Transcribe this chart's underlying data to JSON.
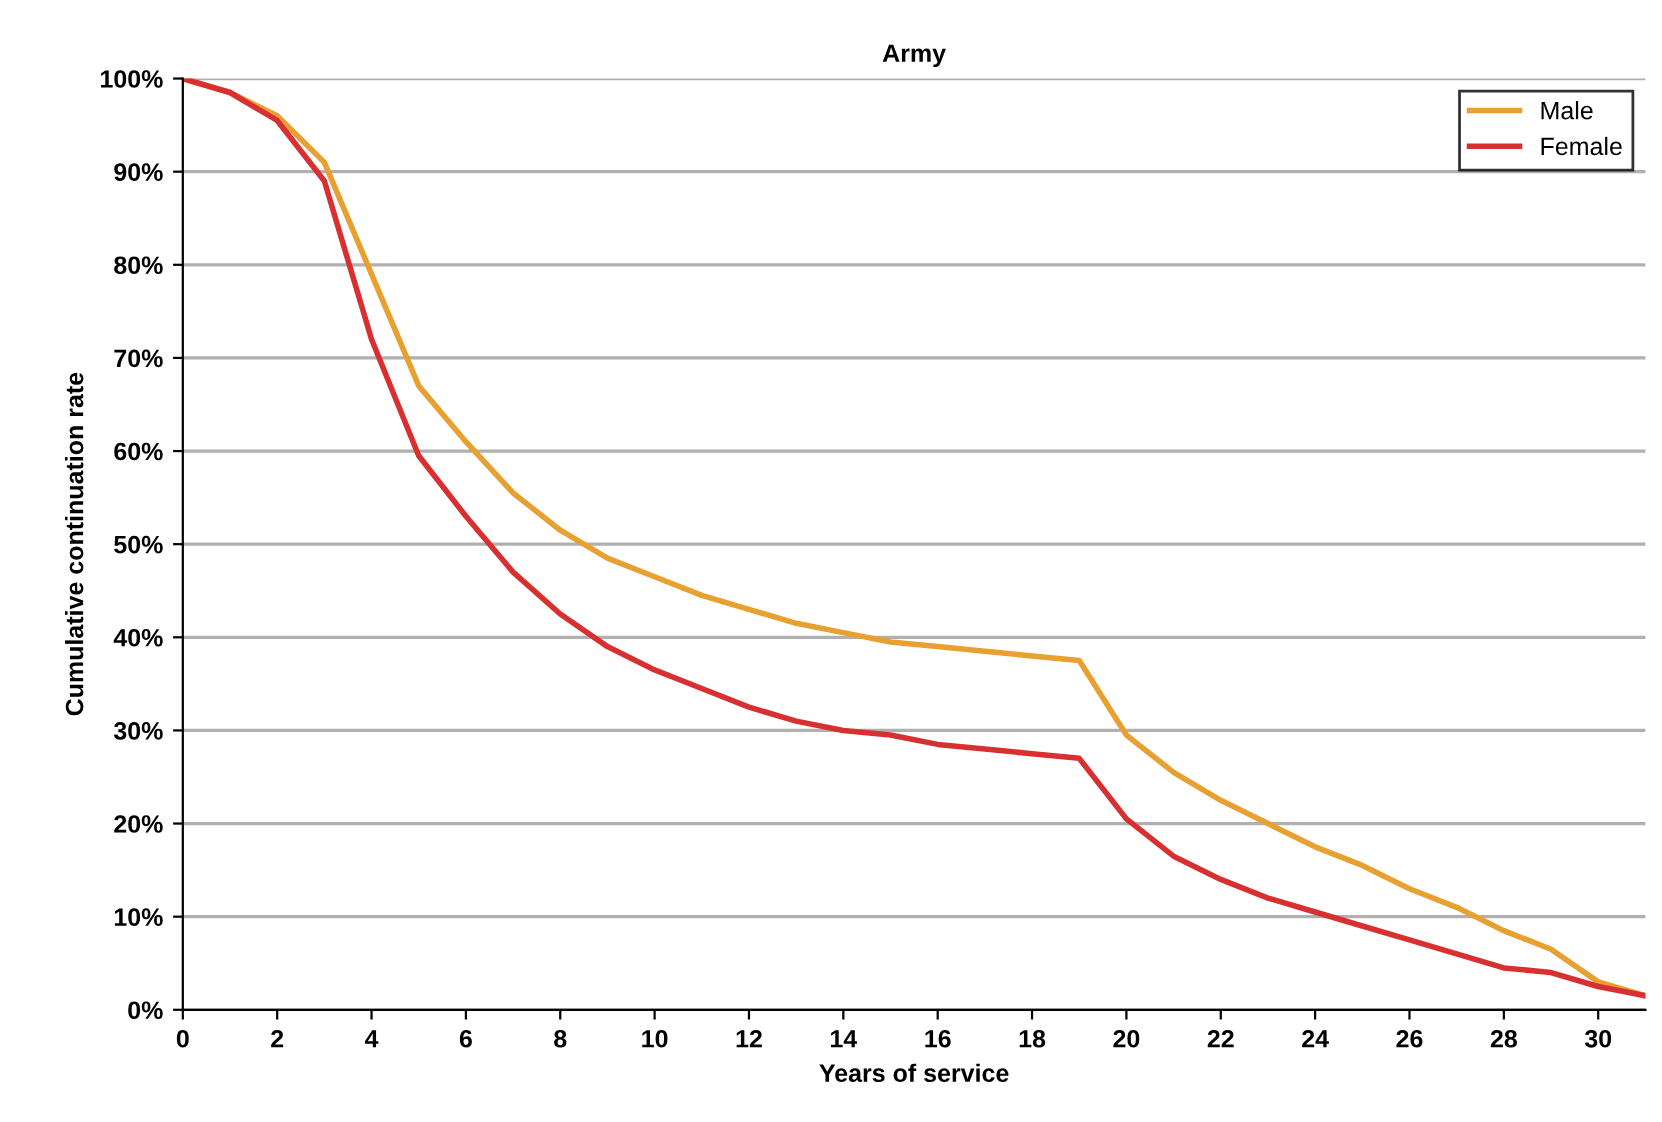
{
  "chart_data": {
    "type": "line",
    "title": "Army",
    "xlabel": "Years of service",
    "ylabel": "Cumulative continuation rate",
    "x": [
      0,
      1,
      2,
      3,
      4,
      5,
      6,
      7,
      8,
      9,
      10,
      11,
      12,
      13,
      14,
      15,
      16,
      17,
      18,
      19,
      20,
      21,
      22,
      23,
      24,
      25,
      26,
      27,
      28,
      29,
      30,
      31
    ],
    "series": [
      {
        "name": "Male",
        "color": "#e8a030",
        "values": [
          100,
          98.5,
          96,
          91,
          79,
          67,
          61,
          55.5,
          51.5,
          48.5,
          46.5,
          44.5,
          43,
          41.5,
          40.5,
          39.5,
          39,
          38.5,
          38,
          37.5,
          29.5,
          25.5,
          22.5,
          20,
          17.5,
          15.5,
          13,
          11,
          8.5,
          6.5,
          3,
          1.5
        ]
      },
      {
        "name": "Female",
        "color": "#d83030",
        "values": [
          100,
          98.5,
          95.5,
          89,
          72,
          59.5,
          53,
          47,
          42.5,
          39,
          36.5,
          34.5,
          32.5,
          31,
          30,
          29.5,
          28.5,
          28,
          27.5,
          27,
          20.5,
          16.5,
          14,
          12,
          10.5,
          9,
          7.5,
          6,
          4.5,
          4,
          2.5,
          1.5
        ]
      }
    ],
    "xlim": [
      0,
      31
    ],
    "xticks": [
      0,
      2,
      4,
      6,
      8,
      10,
      12,
      14,
      16,
      18,
      20,
      22,
      24,
      26,
      28,
      30
    ],
    "ylim": [
      0,
      100
    ],
    "yticks": [
      {
        "value": 0,
        "label": "0%"
      },
      {
        "value": 10,
        "label": "10%"
      },
      {
        "value": 20,
        "label": "20%"
      },
      {
        "value": 30,
        "label": "30%"
      },
      {
        "value": 40,
        "label": "40%"
      },
      {
        "value": 50,
        "label": "50%"
      },
      {
        "value": 60,
        "label": "60%"
      },
      {
        "value": 70,
        "label": "70%"
      },
      {
        "value": 80,
        "label": "80%"
      },
      {
        "value": 90,
        "label": "90%"
      },
      {
        "value": 100,
        "label": "100%"
      }
    ],
    "grid": "y",
    "legend": "top right",
    "marker": "none",
    "line_style": "solid"
  }
}
